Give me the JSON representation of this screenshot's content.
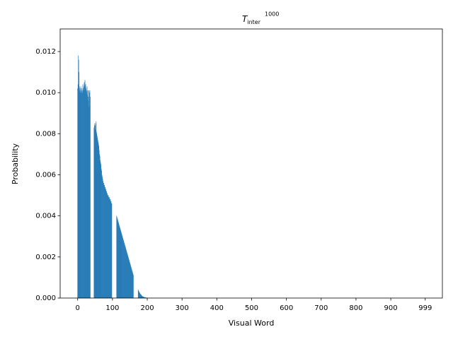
{
  "chart_data": {
    "type": "bar",
    "title": "T",
    "title_subscript": "inter",
    "title_superscript": "1000",
    "x_label": "Visual Word",
    "y_label": "Probability",
    "color": "#1f77b4",
    "xlim": [
      -50.3,
      1048.3
    ],
    "ylim": [
      0,
      0.0131
    ],
    "xticks": [
      0,
      100,
      200,
      300,
      400,
      500,
      600,
      700,
      800,
      900,
      999
    ],
    "yticks": [
      {
        "value": 0,
        "label": "0.000"
      },
      {
        "value": 0.002,
        "label": "0.002"
      },
      {
        "value": 0.004,
        "label": "0.004"
      },
      {
        "value": 0.006,
        "label": "0.006"
      },
      {
        "value": 0.008,
        "label": "0.008"
      },
      {
        "value": 0.01,
        "label": "0.010"
      },
      {
        "value": 0.012,
        "label": "0.012"
      }
    ],
    "x": [
      0,
      1,
      2,
      3,
      4,
      5,
      6,
      7,
      8,
      9,
      10,
      11,
      12,
      13,
      14,
      15,
      16,
      17,
      18,
      19,
      20,
      21,
      22,
      23,
      24,
      25,
      26,
      27,
      28,
      29,
      30,
      31,
      32,
      33,
      34,
      35,
      36,
      37,
      38,
      39,
      40,
      41,
      42,
      43,
      44,
      45,
      46,
      47,
      48,
      49,
      50,
      51,
      52,
      53,
      54,
      55,
      56,
      57,
      58,
      59,
      60,
      61,
      62,
      63,
      64,
      65,
      66,
      67,
      68,
      69,
      70,
      71,
      72,
      73,
      74,
      75,
      76,
      77,
      78,
      79,
      80,
      81,
      82,
      83,
      84,
      85,
      86,
      87,
      88,
      89,
      90,
      91,
      92,
      93,
      94,
      95,
      96,
      97,
      98,
      99,
      100,
      101,
      102,
      103,
      104,
      105,
      106,
      107,
      108,
      109,
      110,
      111,
      112,
      113,
      114,
      115,
      116,
      117,
      118,
      119,
      120,
      121,
      122,
      123,
      124,
      125,
      126,
      127,
      128,
      129,
      130,
      131,
      132,
      133,
      134,
      135,
      136,
      137,
      138,
      139,
      140,
      141,
      142,
      143,
      144,
      145,
      146,
      147,
      148,
      149,
      150,
      151,
      152,
      153,
      154,
      155,
      156,
      157,
      158,
      159,
      160,
      161,
      162,
      163,
      164,
      165,
      166,
      167,
      168,
      169,
      170,
      171,
      172,
      173,
      174,
      175,
      176,
      177,
      178,
      179,
      180,
      181,
      182,
      183,
      184,
      185,
      186,
      187,
      188,
      189,
      190,
      191,
      192,
      193,
      194,
      195,
      196,
      197,
      198,
      199,
      200
    ],
    "values": [
      0.0102,
      0.0104,
      0.0118,
      0.0116,
      0.011,
      0.0103,
      0.0101,
      0.0102,
      0.01,
      0.0103,
      0.0101,
      0.01,
      0.0102,
      0.0101,
      0.01,
      0.0104,
      0.0102,
      0.0101,
      0.0103,
      0.0105,
      0.0104,
      0.0106,
      0.0103,
      0.0104,
      0.0102,
      0.0101,
      0.01,
      0.0103,
      0.0099,
      0.0101,
      0.0098,
      0.0096,
      0.0101,
      0.0093,
      0.01,
      0.0101,
      0.0098,
      0,
      0,
      0,
      0,
      0,
      0,
      0,
      0,
      0,
      0,
      0.0083,
      0.0084,
      0.0085,
      0.0084,
      0.0082,
      0.0085,
      0.0086,
      0.0081,
      0.008,
      0.0079,
      0.0078,
      0.0077,
      0.0076,
      0.0075,
      0.0074,
      0.0072,
      0.007,
      0.0069,
      0.0067,
      0.0066,
      0.0065,
      0.0063,
      0.0062,
      0.006,
      0.0059,
      0.0058,
      0.0057,
      0.0056,
      0.0056,
      0.0055,
      0.0055,
      0.0054,
      0.0054,
      0.0053,
      0.0053,
      0.0052,
      0.0052,
      0.0051,
      0.0051,
      0.005,
      0.005,
      0.005,
      0.0049,
      0.0049,
      0.0049,
      0.0048,
      0.0048,
      0.0048,
      0.0047,
      0.0047,
      0.0046,
      0.0046,
      0,
      0,
      0,
      0,
      0,
      0,
      0,
      0,
      0,
      0,
      0,
      0,
      0,
      0.004,
      0.00394,
      0.00388,
      0.00382,
      0.00376,
      0.0037,
      0.00364,
      0.00358,
      0.00352,
      0.00346,
      0.0034,
      0.00334,
      0.00328,
      0.00322,
      0.00316,
      0.0031,
      0.00304,
      0.00298,
      0.00292,
      0.00286,
      0.0028,
      0.00274,
      0.00268,
      0.00262,
      0.00256,
      0.0025,
      0.00244,
      0.00238,
      0.00232,
      0.00226,
      0.0022,
      0.00214,
      0.00208,
      0.00202,
      0.00196,
      0.0019,
      0.00184,
      0.00178,
      0.00172,
      0.00166,
      0.0016,
      0.00154,
      0.00148,
      0.00142,
      0.00136,
      0.0013,
      0.00124,
      0.00118,
      0.00112,
      0,
      0,
      0,
      0,
      0,
      0,
      0,
      0,
      0,
      0,
      0,
      0,
      0,
      0.0004,
      0.00036,
      0.00032,
      0.00029,
      0.00026,
      0.00023,
      0.0002,
      0.00018,
      0.00016,
      0.00014,
      0.00012,
      0.0001,
      9e-05,
      8e-05,
      7e-05,
      6e-05,
      5e-05,
      4e-05,
      4e-05,
      3e-05,
      3e-05,
      2e-05,
      2e-05,
      2e-05,
      1e-05,
      1e-05,
      1e-05
    ]
  }
}
